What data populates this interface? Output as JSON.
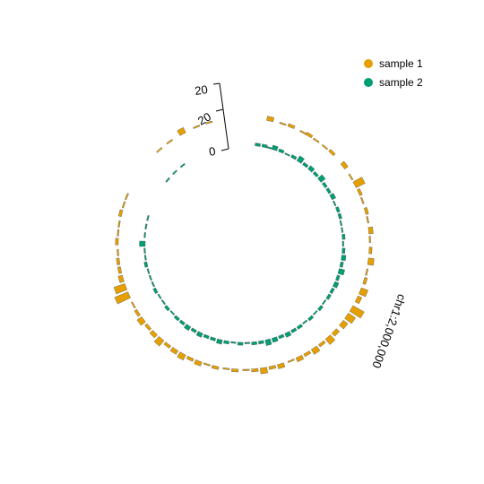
{
  "chart_data": {
    "type": "circular-bar",
    "chromosome_label": "chr1:2,000,000",
    "axis_ticks": [
      "0",
      "20",
      "20"
    ],
    "legend_placement": "top-right",
    "series": [
      {
        "name": "sample 1",
        "color": "#E69F00",
        "points": [
          [
            12,
            3
          ],
          [
            18,
            1
          ],
          [
            22,
            2
          ],
          [
            28,
            1
          ],
          [
            31,
            2
          ],
          [
            35,
            1
          ],
          [
            40,
            1
          ],
          [
            44,
            2
          ],
          [
            52,
            3
          ],
          [
            58,
            1
          ],
          [
            62,
            7
          ],
          [
            66,
            2
          ],
          [
            70,
            1
          ],
          [
            75,
            2
          ],
          [
            79,
            1
          ],
          [
            84,
            3
          ],
          [
            88,
            1
          ],
          [
            93,
            2
          ],
          [
            98,
            4
          ],
          [
            103,
            1
          ],
          [
            107,
            2
          ],
          [
            112,
            5
          ],
          [
            116,
            3
          ],
          [
            121,
            9
          ],
          [
            125,
            6
          ],
          [
            129,
            4
          ],
          [
            134,
            3
          ],
          [
            138,
            5
          ],
          [
            142,
            2
          ],
          [
            146,
            4
          ],
          [
            150,
            2
          ],
          [
            154,
            3
          ],
          [
            158,
            1
          ],
          [
            163,
            3
          ],
          [
            167,
            2
          ],
          [
            171,
            4
          ],
          [
            175,
            2
          ],
          [
            179,
            1
          ],
          [
            184,
            2
          ],
          [
            188,
            1
          ],
          [
            193,
            2
          ],
          [
            197,
            1
          ],
          [
            201,
            3
          ],
          [
            205,
            2
          ],
          [
            209,
            4
          ],
          [
            213,
            3
          ],
          [
            217,
            2
          ],
          [
            221,
            5
          ],
          [
            225,
            3
          ],
          [
            229,
            2
          ],
          [
            233,
            4
          ],
          [
            237,
            2
          ],
          [
            241,
            1
          ],
          [
            246,
            10
          ],
          [
            250,
            8
          ],
          [
            254,
            3
          ],
          [
            258,
            2
          ],
          [
            262,
            2
          ],
          [
            266,
            1
          ],
          [
            271,
            2
          ],
          [
            275,
            1
          ],
          [
            279,
            1
          ],
          [
            284,
            2
          ],
          [
            288,
            1
          ],
          [
            292,
            1
          ],
          [
            318,
            1
          ],
          [
            324,
            1
          ],
          [
            331,
            4
          ],
          [
            338,
            1
          ],
          [
            344,
            1
          ]
        ]
      },
      {
        "name": "sample 2",
        "color": "#009E73",
        "points": [
          [
            8,
            2
          ],
          [
            12,
            2
          ],
          [
            15,
            1
          ],
          [
            18,
            3
          ],
          [
            22,
            2
          ],
          [
            26,
            1
          ],
          [
            30,
            2
          ],
          [
            34,
            4
          ],
          [
            38,
            2
          ],
          [
            42,
            3
          ],
          [
            46,
            2
          ],
          [
            50,
            4
          ],
          [
            54,
            2
          ],
          [
            58,
            2
          ],
          [
            62,
            3
          ],
          [
            66,
            1
          ],
          [
            70,
            2
          ],
          [
            74,
            2
          ],
          [
            78,
            1
          ],
          [
            82,
            1
          ],
          [
            86,
            2
          ],
          [
            90,
            1
          ],
          [
            94,
            2
          ],
          [
            98,
            3
          ],
          [
            102,
            2
          ],
          [
            106,
            4
          ],
          [
            110,
            2
          ],
          [
            114,
            3
          ],
          [
            118,
            2
          ],
          [
            122,
            2
          ],
          [
            126,
            1
          ],
          [
            130,
            2
          ],
          [
            134,
            1
          ],
          [
            138,
            2
          ],
          [
            142,
            1
          ],
          [
            146,
            2
          ],
          [
            150,
            2
          ],
          [
            154,
            3
          ],
          [
            158,
            2
          ],
          [
            162,
            3
          ],
          [
            166,
            4
          ],
          [
            170,
            2
          ],
          [
            174,
            2
          ],
          [
            178,
            1
          ],
          [
            182,
            2
          ],
          [
            186,
            1
          ],
          [
            190,
            2
          ],
          [
            194,
            3
          ],
          [
            198,
            2
          ],
          [
            202,
            2
          ],
          [
            206,
            3
          ],
          [
            210,
            2
          ],
          [
            214,
            3
          ],
          [
            218,
            2
          ],
          [
            222,
            2
          ],
          [
            226,
            1
          ],
          [
            230,
            2
          ],
          [
            234,
            1
          ],
          [
            238,
            1
          ],
          [
            242,
            2
          ],
          [
            246,
            1
          ],
          [
            250,
            1
          ],
          [
            254,
            1
          ],
          [
            258,
            2
          ],
          [
            262,
            1
          ],
          [
            266,
            1
          ],
          [
            270,
            4
          ],
          [
            275,
            1
          ],
          [
            280,
            1
          ],
          [
            285,
            1
          ],
          [
            310,
            1
          ],
          [
            316,
            1
          ],
          [
            322,
            1
          ]
        ]
      }
    ]
  }
}
